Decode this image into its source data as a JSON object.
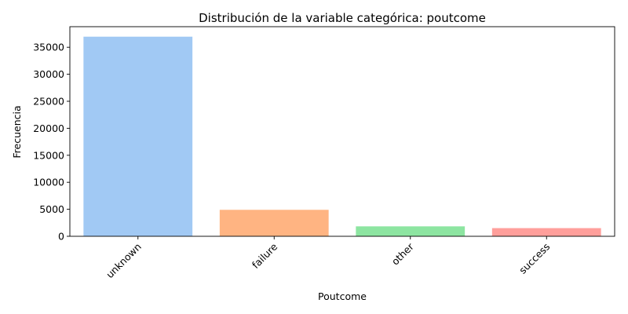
{
  "chart_data": {
    "type": "bar",
    "title": "Distribución de la variable categórica: poutcome",
    "xlabel": "Poutcome",
    "ylabel": "Frecuencia",
    "categories": [
      "unknown",
      "failure",
      "other",
      "success"
    ],
    "values": [
      36959,
      4901,
      1840,
      1511
    ],
    "ylim": [
      0,
      38808
    ],
    "yticks": [
      0,
      5000,
      10000,
      15000,
      20000,
      25000,
      30000,
      35000
    ],
    "colors": [
      "#a1c9f4",
      "#ffb482",
      "#8de5a1",
      "#ff9f9b"
    ],
    "grid": false,
    "legend": "none"
  }
}
